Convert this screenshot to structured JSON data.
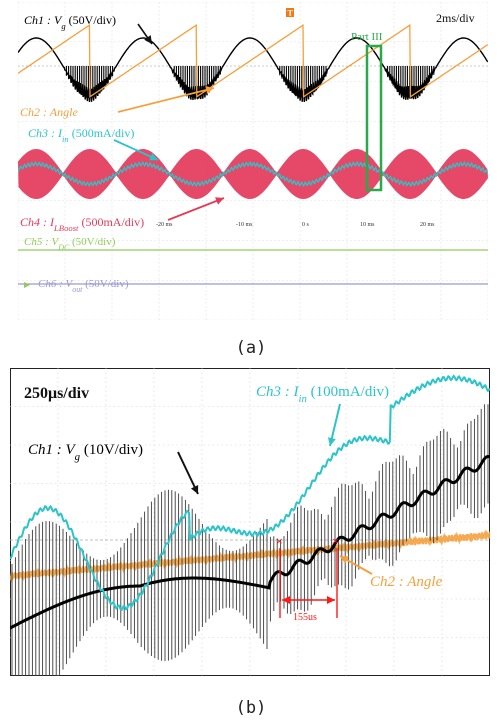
{
  "captions": {
    "a": "(a)",
    "b": "(b)"
  },
  "chart_data": [
    {
      "type": "line",
      "panel": "a",
      "grid": true,
      "timebase": "2ms/div",
      "trigger_marker": "T",
      "x_tick_labels": [
        "-20 ms",
        "-10 ms",
        "0 s",
        "10 ms",
        "20 ms"
      ],
      "annotation_box": "Part III",
      "channels": [
        {
          "id": "ch1",
          "name": "Ch1",
          "sym": "V",
          "sub": "g",
          "scale": "(50V/div)",
          "color": "#000000"
        },
        {
          "id": "ch2",
          "name": "Ch2",
          "sym": "Angle",
          "sub": "",
          "scale": "",
          "color": "#f5a03c"
        },
        {
          "id": "ch3",
          "name": "Ch3",
          "sym": "I",
          "sub": "in",
          "scale": "(500mA/div)",
          "color": "#2cc4c9"
        },
        {
          "id": "ch4",
          "name": "Ch4",
          "sym": "I",
          "sub": "LBoost",
          "scale": "(500mA/div)",
          "color": "#e33a5a"
        },
        {
          "id": "ch5",
          "name": "Ch5",
          "sym": "V",
          "sub": "DC",
          "scale": "(50V/div)",
          "color": "#8fcc5a"
        },
        {
          "id": "ch6",
          "name": "Ch6",
          "sym": "V",
          "sub": "out",
          "scale": "(50V/div)",
          "color": "#9a9ad6"
        }
      ],
      "line_frequency_periods_in_window": 4.4,
      "colors": {
        "ch1": "#000000",
        "ch2": "#f5a03c",
        "ch3": "#2cc4c9",
        "ch4": "#e33a5a",
        "ch5": "#8fcc5a",
        "ch6": "#9a9ad6",
        "box": "#2aa84a"
      }
    },
    {
      "type": "line",
      "panel": "b",
      "grid": true,
      "timebase": "250μs/div",
      "channels": [
        {
          "id": "ch1",
          "name": "Ch1",
          "sym": "V",
          "sub": "g",
          "scale": "(10V/div)",
          "color": "#000000"
        },
        {
          "id": "ch2",
          "name": "Ch2",
          "sym": "Angle",
          "sub": "",
          "scale": "",
          "color": "#f5a03c"
        },
        {
          "id": "ch3",
          "name": "Ch3",
          "sym": "I",
          "sub": "in",
          "scale": "(100mA/div)",
          "color": "#2cc4c9"
        }
      ],
      "delay_annotation": "155us",
      "delay_us": 155,
      "colors": {
        "ch1": "#000000",
        "ch2": "#f5a03c",
        "ch3": "#2cc4c9",
        "marker": "#ff1a1a"
      }
    }
  ]
}
